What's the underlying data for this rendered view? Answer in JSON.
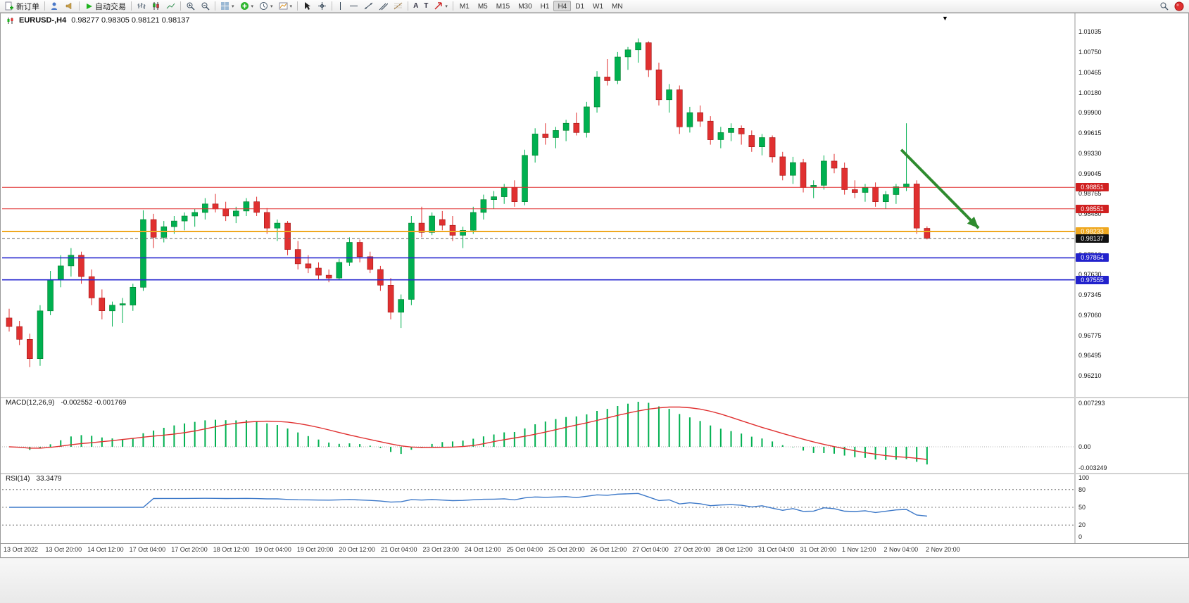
{
  "toolbar": {
    "new_order_label": "新订单",
    "autotrade_label": "自动交易",
    "timeframes": [
      "M1",
      "M5",
      "M15",
      "M30",
      "H1",
      "H4",
      "D1",
      "W1",
      "MN"
    ],
    "active_timeframe": "H4",
    "icons": [
      "new-order-icon",
      "profile-icon",
      "sound-icon",
      "autotrade-play-icon",
      "bar-chart-icon",
      "candlestick-icon",
      "line-chart-icon",
      "zoom-in-icon",
      "zoom-out-icon",
      "tile-windows-icon",
      "indicators-icon",
      "periods-icon",
      "templates-icon",
      "cursor-icon",
      "crosshair-icon",
      "vertical-line-icon",
      "horizontal-line-icon",
      "trendline-icon",
      "channel-icon",
      "fibonacci-icon",
      "text-icon",
      "text-label-icon",
      "arrow-tool-icon",
      "search-icon",
      "notifications-icon"
    ]
  },
  "chart": {
    "symbol_period": "EURUSD-,H4",
    "ohlc_text": "0.98277 0.98305 0.98121 0.98137"
  },
  "chart_data": {
    "type": "candlestick",
    "symbol": "EURUSD-",
    "timeframe": "H4",
    "up_color": "#00b050",
    "down_color": "#e03030",
    "price_axis": {
      "top_label_price": 1.01035,
      "bottom_label_price": 0.9621,
      "labels": [
        "1.01035",
        "1.00750",
        "1.00465",
        "1.00180",
        "0.99900",
        "0.99615",
        "0.99330",
        "0.99045",
        "0.98765",
        "0.98480",
        "0.98195",
        "0.97910",
        "0.97630",
        "0.97345",
        "0.97060",
        "0.96775",
        "0.96495",
        "0.96210"
      ]
    },
    "candles": [
      [
        0.9702,
        0.9715,
        0.9683,
        0.969
      ],
      [
        0.969,
        0.9698,
        0.9664,
        0.9672
      ],
      [
        0.9672,
        0.968,
        0.9633,
        0.9645
      ],
      [
        0.9645,
        0.972,
        0.9635,
        0.9712
      ],
      [
        0.9712,
        0.9768,
        0.9706,
        0.9755
      ],
      [
        0.9755,
        0.979,
        0.9745,
        0.9775
      ],
      [
        0.9775,
        0.98,
        0.976,
        0.979
      ],
      [
        0.979,
        0.9795,
        0.975,
        0.976
      ],
      [
        0.976,
        0.977,
        0.972,
        0.973
      ],
      [
        0.973,
        0.9742,
        0.97,
        0.9712
      ],
      [
        0.9712,
        0.9725,
        0.969,
        0.972
      ],
      [
        0.972,
        0.973,
        0.9695,
        0.9722
      ],
      [
        0.972,
        0.975,
        0.9712,
        0.9745
      ],
      [
        0.9745,
        0.9853,
        0.974,
        0.984
      ],
      [
        0.984,
        0.9848,
        0.98,
        0.9815
      ],
      [
        0.9815,
        0.9838,
        0.9808,
        0.983
      ],
      [
        0.983,
        0.9845,
        0.982,
        0.9838
      ],
      [
        0.9838,
        0.985,
        0.9825,
        0.9845
      ],
      [
        0.9845,
        0.9855,
        0.983,
        0.985
      ],
      [
        0.985,
        0.987,
        0.984,
        0.9862
      ],
      [
        0.9862,
        0.9876,
        0.985,
        0.9855
      ],
      [
        0.9855,
        0.9865,
        0.9838,
        0.9845
      ],
      [
        0.9845,
        0.9858,
        0.9835,
        0.9852
      ],
      [
        0.9852,
        0.987,
        0.9845,
        0.9865
      ],
      [
        0.9865,
        0.9872,
        0.9845,
        0.985
      ],
      [
        0.985,
        0.9856,
        0.982,
        0.9828
      ],
      [
        0.9828,
        0.984,
        0.981,
        0.9835
      ],
      [
        0.9835,
        0.9838,
        0.979,
        0.9798
      ],
      [
        0.9798,
        0.981,
        0.977,
        0.9778
      ],
      [
        0.9778,
        0.979,
        0.9765,
        0.9772
      ],
      [
        0.9772,
        0.978,
        0.9756,
        0.9762
      ],
      [
        0.9762,
        0.977,
        0.9752,
        0.9758
      ],
      [
        0.9758,
        0.9785,
        0.9755,
        0.978
      ],
      [
        0.978,
        0.9815,
        0.9775,
        0.9808
      ],
      [
        0.9808,
        0.9812,
        0.978,
        0.9788
      ],
      [
        0.9788,
        0.9795,
        0.9765,
        0.977
      ],
      [
        0.977,
        0.9775,
        0.974,
        0.9748
      ],
      [
        0.9748,
        0.9758,
        0.97,
        0.971
      ],
      [
        0.971,
        0.9735,
        0.9688,
        0.9728
      ],
      [
        0.9728,
        0.9845,
        0.972,
        0.9835
      ],
      [
        0.9835,
        0.9858,
        0.9815,
        0.9822
      ],
      [
        0.9822,
        0.985,
        0.9818,
        0.9845
      ],
      [
        0.984,
        0.9852,
        0.9825,
        0.9832
      ],
      [
        0.9832,
        0.9845,
        0.981,
        0.9818
      ],
      [
        0.9818,
        0.983,
        0.98,
        0.9825
      ],
      [
        0.9825,
        0.9858,
        0.982,
        0.985
      ],
      [
        0.985,
        0.9875,
        0.984,
        0.9868
      ],
      [
        0.9868,
        0.988,
        0.9855,
        0.9872
      ],
      [
        0.9872,
        0.989,
        0.9862,
        0.9885
      ],
      [
        0.9885,
        0.9895,
        0.9858,
        0.9865
      ],
      [
        0.9865,
        0.9938,
        0.986,
        0.993
      ],
      [
        0.993,
        0.9968,
        0.992,
        0.996
      ],
      [
        0.996,
        0.9975,
        0.9945,
        0.9955
      ],
      [
        0.9955,
        0.997,
        0.994,
        0.9965
      ],
      [
        0.9965,
        0.998,
        0.995,
        0.9975
      ],
      [
        0.9975,
        0.999,
        0.9958,
        0.9962
      ],
      [
        0.9962,
        1.0005,
        0.9955,
        0.9998
      ],
      [
        0.9998,
        1.0048,
        0.999,
        1.004
      ],
      [
        1.004,
        1.0065,
        1.0028,
        1.0035
      ],
      [
        1.0035,
        1.0075,
        1.003,
        1.0068
      ],
      [
        1.0068,
        1.0082,
        1.005,
        1.0078
      ],
      [
        1.0078,
        1.0094,
        1.006,
        1.0088
      ],
      [
        1.0088,
        1.009,
        1.004,
        1.005
      ],
      [
        1.005,
        1.006,
        1.0,
        1.0008
      ],
      [
        1.0008,
        1.003,
        0.999,
        1.0022
      ],
      [
        1.0022,
        1.0028,
        0.996,
        0.997
      ],
      [
        0.997,
        0.9998,
        0.9962,
        0.999
      ],
      [
        0.999,
        1.0,
        0.997,
        0.9978
      ],
      [
        0.9978,
        0.9985,
        0.9945,
        0.9952
      ],
      [
        0.9952,
        0.997,
        0.994,
        0.9962
      ],
      [
        0.9962,
        0.9975,
        0.995,
        0.9968
      ],
      [
        0.9968,
        0.9972,
        0.9945,
        0.996
      ],
      [
        0.9958,
        0.9965,
        0.9935,
        0.9942
      ],
      [
        0.9942,
        0.996,
        0.993,
        0.9955
      ],
      [
        0.9955,
        0.9958,
        0.992,
        0.9928
      ],
      [
        0.9928,
        0.9935,
        0.9895,
        0.9902
      ],
      [
        0.9902,
        0.9928,
        0.989,
        0.992
      ],
      [
        0.992,
        0.9925,
        0.9878,
        0.9885
      ],
      [
        0.9885,
        0.9895,
        0.987,
        0.9888
      ],
      [
        0.9888,
        0.993,
        0.9882,
        0.9922
      ],
      [
        0.9922,
        0.9932,
        0.9905,
        0.9912
      ],
      [
        0.9912,
        0.992,
        0.9875,
        0.9882
      ],
      [
        0.9882,
        0.9895,
        0.987,
        0.9878
      ],
      [
        0.9878,
        0.989,
        0.9865,
        0.9885
      ],
      [
        0.9885,
        0.9892,
        0.9858,
        0.9865
      ],
      [
        0.9865,
        0.988,
        0.9855,
        0.9875
      ],
      [
        0.9875,
        0.989,
        0.9862,
        0.9886
      ],
      [
        0.9886,
        0.9975,
        0.988,
        0.989
      ],
      [
        0.989,
        0.9895,
        0.982,
        0.9828
      ],
      [
        0.98277,
        0.98305,
        0.98121,
        0.98137
      ]
    ],
    "hlines": [
      {
        "price": 0.98851,
        "color": "#e03030",
        "width": 1,
        "tag": "0.98851",
        "tag_color": "#d02020"
      },
      {
        "price": 0.98551,
        "color": "#e03030",
        "width": 1,
        "tag": "0.98551",
        "tag_color": "#d02020"
      },
      {
        "price": 0.98233,
        "color": "#efa820",
        "width": 2,
        "tag": "0.98233",
        "tag_color": "#efa820"
      },
      {
        "price": 0.97864,
        "color": "#2a2ad0",
        "width": 1.6,
        "tag": "0.97864",
        "tag_color": "#2222cc"
      },
      {
        "price": 0.97555,
        "color": "#2a2ad0",
        "width": 1.6,
        "tag": "0.97555",
        "tag_color": "#2222cc"
      }
    ],
    "current_price": {
      "value": 0.98137,
      "tag": "0.98137",
      "tag_color": "#111111"
    },
    "trend_arrow": {
      "from": {
        "bar": 86.5,
        "price": 0.9938
      },
      "to": {
        "bar": 94,
        "price": 0.9828
      },
      "color": "#2e8b2e"
    },
    "x_labels": [
      "13 Oct 2022",
      "13 Oct 20:00",
      "14 Oct 12:00",
      "17 Oct 04:00",
      "17 Oct 20:00",
      "18 Oct 12:00",
      "19 Oct 04:00",
      "19 Oct 20:00",
      "20 Oct 12:00",
      "21 Oct 04:00",
      "23 Oct 23:00",
      "24 Oct 12:00",
      "25 Oct 04:00",
      "25 Oct 20:00",
      "26 Oct 12:00",
      "27 Oct 04:00",
      "27 Oct 20:00",
      "28 Oct 12:00",
      "31 Oct 04:00",
      "31 Oct 20:00",
      "1 Nov 12:00",
      "2 Nov 04:00",
      "2 Nov 20:00"
    ],
    "macd": {
      "label": "MACD(12,26,9)",
      "value_text": "-0.002552 -0.001769",
      "fast": 12,
      "slow": 26,
      "signal": 9,
      "axis_labels": [
        "0.007293",
        "0.00",
        "-0.003249"
      ],
      "hist_color": "#00b050",
      "signal_color": "#e03030"
    },
    "rsi": {
      "label": "RSI(14)",
      "value_text": "33.3479",
      "period": 14,
      "levels": [
        80,
        50,
        20
      ],
      "axis_labels": [
        "100",
        "80",
        "50",
        "20",
        "0"
      ],
      "line_color": "#3c78c8"
    }
  }
}
